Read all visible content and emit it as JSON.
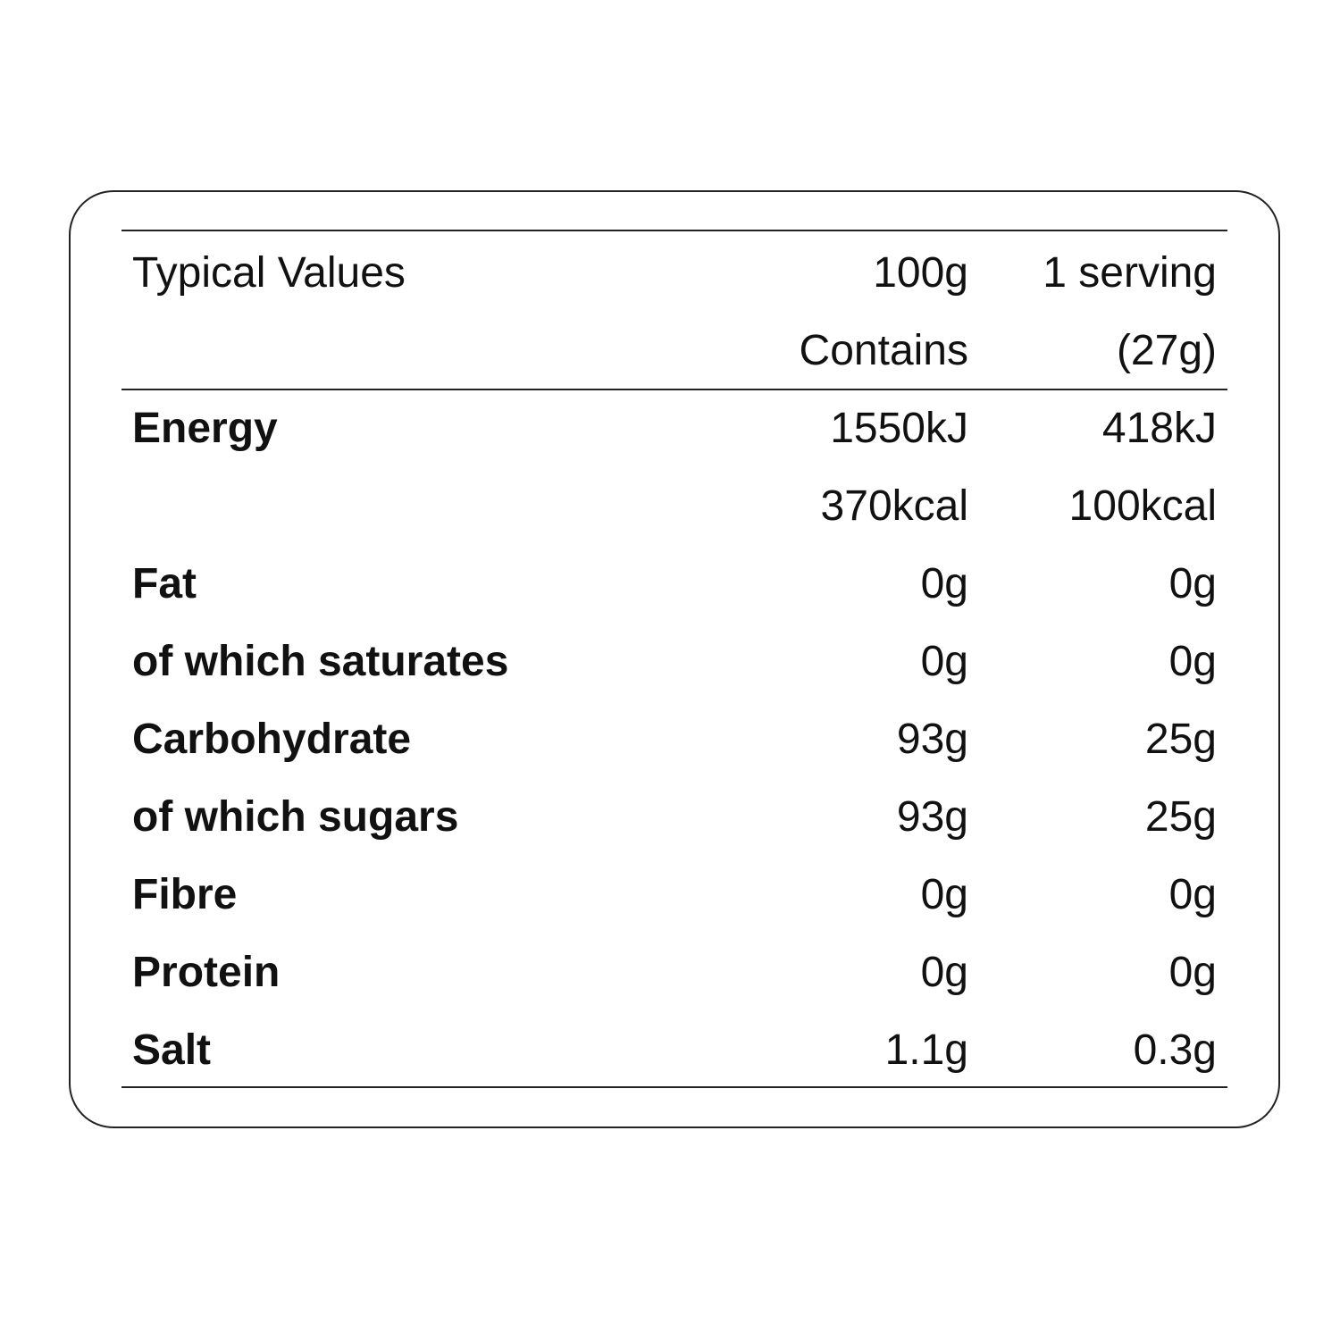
{
  "header": {
    "label": "Typical Values",
    "col1_line1": "100g",
    "col1_line2": "Contains",
    "col2_line1": "1 serving",
    "col2_line2": "(27g)"
  },
  "rows": [
    {
      "label": "Energy",
      "per100": "1550kJ",
      "serving": "418kJ"
    },
    {
      "label": "",
      "per100": "370kcal",
      "serving": "100kcal"
    },
    {
      "label": "Fat",
      "per100": "0g",
      "serving": "0g"
    },
    {
      "label": "of which saturates",
      "per100": "0g",
      "serving": "0g"
    },
    {
      "label": "Carbohydrate",
      "per100": "93g",
      "serving": "25g"
    },
    {
      "label": "of which sugars",
      "per100": "93g",
      "serving": "25g"
    },
    {
      "label": "Fibre",
      "per100": "0g",
      "serving": "0g"
    },
    {
      "label": "Protein",
      "per100": "0g",
      "serving": "0g"
    },
    {
      "label": "Salt",
      "per100": "1.1g",
      "serving": "0.3g"
    }
  ]
}
